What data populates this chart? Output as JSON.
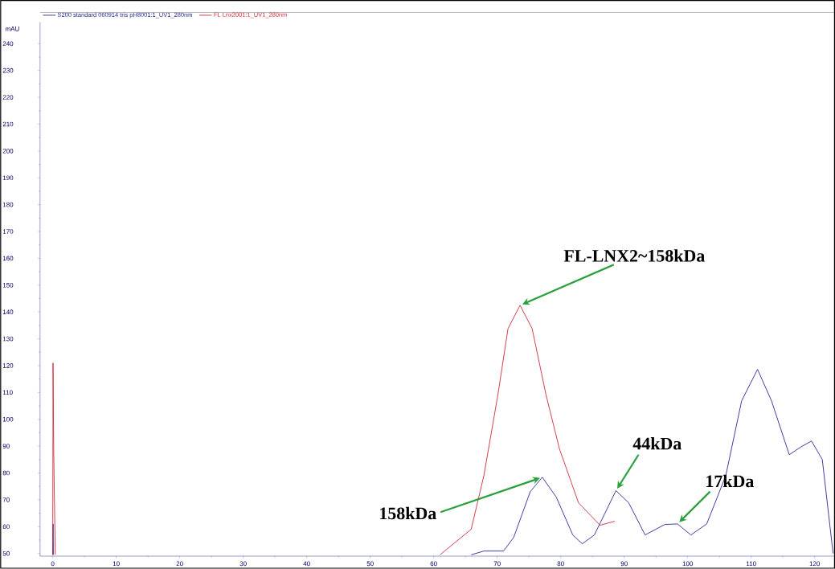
{
  "chart_data": {
    "type": "line",
    "ylabel": "mAU",
    "xlim": [
      -2,
      123
    ],
    "ylim": [
      49,
      248
    ],
    "xticks": [
      0,
      10,
      20,
      30,
      40,
      50,
      60,
      70,
      80,
      90,
      100,
      110,
      120
    ],
    "yticks": [
      50,
      60,
      70,
      80,
      90,
      100,
      110,
      120,
      130,
      140,
      150,
      160,
      170,
      180,
      190,
      200,
      210,
      220,
      230,
      240
    ],
    "legend": "top left",
    "grid": false,
    "marker": "none",
    "line_style": "solid",
    "series": [
      {
        "name": "S200 standard 060914 tris pH8001:1_UV1_280nm",
        "color": "#2a2a96",
        "x": [
          0,
          0.05,
          0.1,
          null,
          65.9,
          67.9,
          71,
          72.6,
          75.2,
          77.1,
          79.3,
          81.9,
          83.4,
          85.3,
          88.7,
          90.7,
          93.3,
          96.4,
          98.4,
          100.5,
          103,
          106,
          108.5,
          111,
          113.2,
          116,
          117.9,
          119.5,
          121.2,
          122.9
        ],
        "values": [
          49.5,
          61,
          49.5,
          null,
          49.5,
          50.9,
          50.9,
          56,
          73,
          78.4,
          71,
          56.9,
          53.6,
          56.9,
          73.4,
          68.9,
          56.9,
          60.8,
          61,
          56.9,
          61,
          79,
          106.9,
          118.6,
          106.9,
          86.8,
          89.8,
          91.9,
          85,
          50
        ]
      },
      {
        "name": "FL Lnx2001:1_UV1_280nm",
        "color": "#d02a3a",
        "x": [
          0,
          0.05,
          0.15,
          0.3,
          0.4,
          null,
          61,
          65.9,
          67.9,
          70.1,
          71.7,
          73.6,
          75.5,
          77.7,
          79.8,
          82.8,
          86.2,
          88.5
        ],
        "values": [
          49.5,
          121,
          89,
          64,
          49.5,
          null,
          49.5,
          59,
          79,
          109,
          133.8,
          142.5,
          133.8,
          109,
          89,
          68.9,
          60.5,
          62
        ]
      }
    ],
    "annotations": [
      {
        "text": "FL-LNX2~158kDa",
        "x": 73.6,
        "y": 142.5
      },
      {
        "text": "158kDa",
        "x": 77.1,
        "y": 78.4
      },
      {
        "text": "44kDa",
        "x": 88.7,
        "y": 73.4
      },
      {
        "text": "17kDa",
        "x": 98.4,
        "y": 61
      }
    ]
  }
}
